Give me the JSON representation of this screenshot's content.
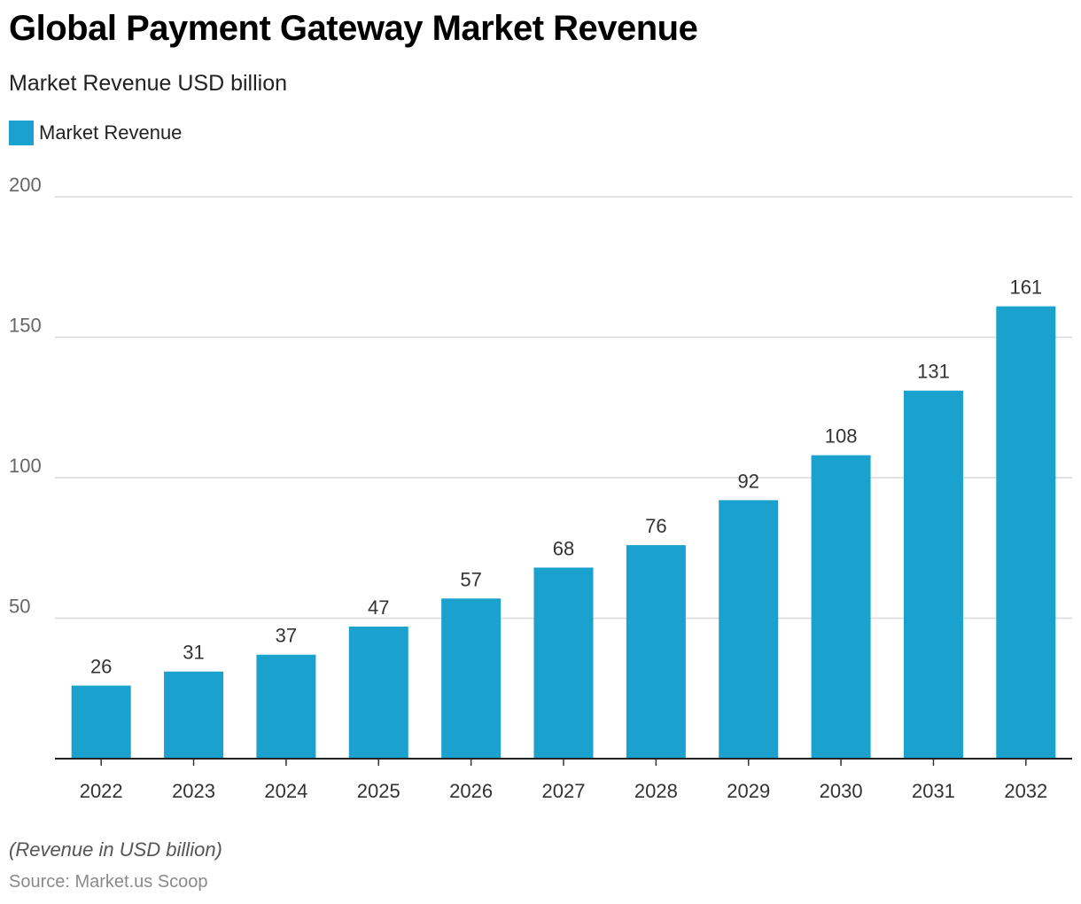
{
  "title": "Global Payment Gateway Market Revenue",
  "subtitle": "Market Revenue USD billion",
  "legend": {
    "label": "Market Revenue",
    "color": "#1aa1cd"
  },
  "note": "(Revenue in USD billion)",
  "source": "Source: Market.us Scoop",
  "chart_data": {
    "type": "bar",
    "categories": [
      "2022",
      "2023",
      "2024",
      "2025",
      "2026",
      "2027",
      "2028",
      "2029",
      "2030",
      "2031",
      "2032"
    ],
    "series": [
      {
        "name": "Market Revenue",
        "values": [
          26,
          31,
          37,
          47,
          57,
          68,
          76,
          92,
          108,
          131,
          161
        ],
        "color": "#1aa1cd"
      }
    ],
    "y_ticks": [
      "50",
      "100",
      "150",
      "200"
    ],
    "ylim": [
      0,
      200
    ],
    "grid": true,
    "data_labels": true,
    "legend_position": "top-left"
  }
}
